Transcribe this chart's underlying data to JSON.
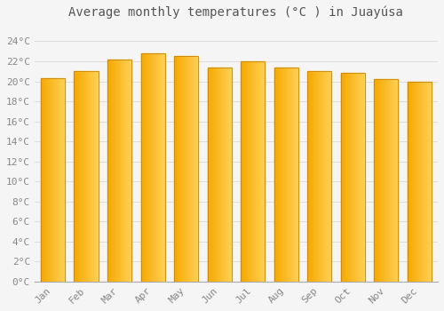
{
  "months": [
    "Jan",
    "Feb",
    "Mar",
    "Apr",
    "May",
    "Jun",
    "Jul",
    "Aug",
    "Sep",
    "Oct",
    "Nov",
    "Dec"
  ],
  "values": [
    20.3,
    21.0,
    22.2,
    22.8,
    22.5,
    21.4,
    22.0,
    21.4,
    21.0,
    20.8,
    20.2,
    20.0
  ],
  "bar_color_left": "#F5A800",
  "bar_color_right": "#FFCC44",
  "bar_color_top": "#FFD966",
  "bar_edge_color": "#C8850A",
  "background_color": "#F5F5F5",
  "plot_bg_color": "#F5F5F5",
  "grid_color": "#DDDDDD",
  "title": "Average monthly temperatures (°C ) in Juayúsa",
  "title_fontsize": 10,
  "tick_label_color": "#888888",
  "title_color": "#555555",
  "ytick_labels": [
    "0°C",
    "2°C",
    "4°C",
    "6°C",
    "8°C",
    "10°C",
    "12°C",
    "14°C",
    "16°C",
    "18°C",
    "20°C",
    "22°C",
    "24°C"
  ],
  "ytick_values": [
    0,
    2,
    4,
    6,
    8,
    10,
    12,
    14,
    16,
    18,
    20,
    22,
    24
  ],
  "ylim": [
    0,
    25.5
  ],
  "xlim": [
    -0.55,
    11.55
  ],
  "bar_width": 0.72
}
